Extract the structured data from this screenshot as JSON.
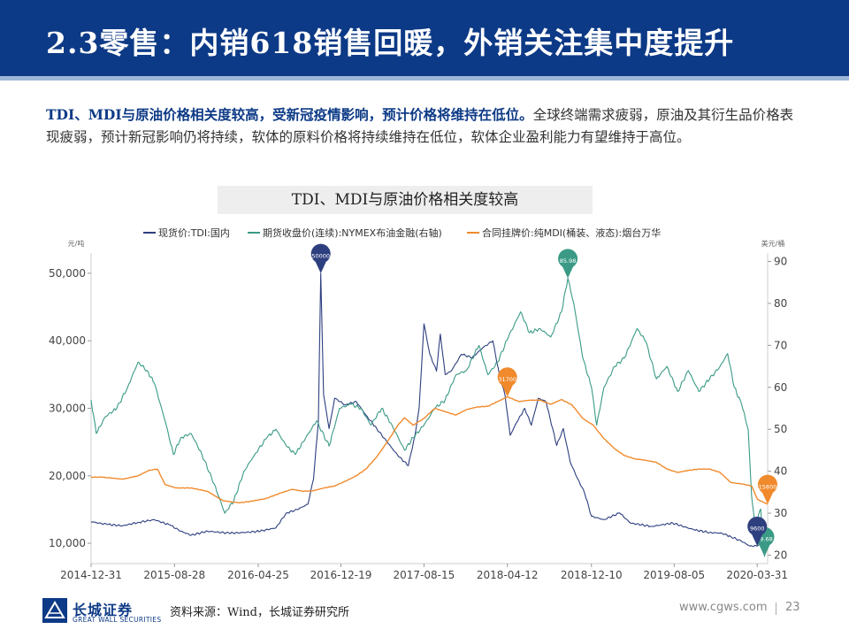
{
  "header": {
    "title": "2.3零售：内销618销售回暖，外销关注集中度提升"
  },
  "intro": {
    "lead": "TDI、MDI与原油价格相关度较高，受新冠疫情影响，预计价格将维持在低位。",
    "body": "全球终端需求疲弱，原油及其衍生品价格表现疲弱，预计新冠影响仍将持续，软体的原料价格将持续维持在低位，软体企业盈利能力有望维持于高位。"
  },
  "footer": {
    "brand": "长城证券",
    "brand_en": "GREAT WALL SECURITIES",
    "source": "资料来源：Wind，长城证券研究所",
    "url": "www.cgws.com",
    "page": "23"
  },
  "colors": {
    "navy": "#2e3f7f",
    "teal": "#3a9a86",
    "orange": "#f08a2c",
    "brand": "#0d3a86"
  },
  "chart_data": {
    "type": "line",
    "title": "TDI、MDI与原油价格相关度较高",
    "left_axis": {
      "unit": "元/吨",
      "range": [
        7000,
        53000
      ],
      "ticks": [
        10000,
        20000,
        30000,
        40000,
        50000
      ],
      "tick_labels": [
        "10,000",
        "20,000",
        "30,000",
        "40,000",
        "50,000"
      ]
    },
    "right_axis": {
      "unit": "美元/桶",
      "range": [
        18,
        92
      ],
      "ticks": [
        20,
        30,
        40,
        50,
        60,
        70,
        80,
        90
      ],
      "tick_labels": [
        "20",
        "30",
        "40",
        "50",
        "60",
        "70",
        "80",
        "90"
      ]
    },
    "x_range": [
      "2014-12-31",
      "2020-04-30"
    ],
    "x_ticks": [
      "2014-12-31",
      "2015-08-28",
      "2016-04-25",
      "2016-12-19",
      "2017-08-15",
      "2018-04-12",
      "2018-12-10",
      "2019-08-05",
      "2020-03-31"
    ],
    "legend": [
      "现货价:TDI:国内",
      "期货收盘价(连续):NYMEX布油金融(右轴)",
      "合同挂牌价:纯MDI(桶装、液态):烟台万华"
    ],
    "series": [
      {
        "name": "现货价:TDI:国内",
        "axis": "left",
        "color": "#2e3f7f",
        "points": [
          [
            "2014-12-31",
            13200
          ],
          [
            "2015-02-15",
            12800
          ],
          [
            "2015-04-01",
            12600
          ],
          [
            "2015-05-15",
            13100
          ],
          [
            "2015-07-01",
            13500
          ],
          [
            "2015-08-15",
            12700
          ],
          [
            "2015-09-15",
            11800
          ],
          [
            "2015-10-15",
            11200
          ],
          [
            "2015-12-01",
            11800
          ],
          [
            "2016-02-01",
            11500
          ],
          [
            "2016-03-15",
            11600
          ],
          [
            "2016-05-01",
            11800
          ],
          [
            "2016-06-15",
            12300
          ],
          [
            "2016-07-15",
            14500
          ],
          [
            "2016-08-15",
            15000
          ],
          [
            "2016-09-15",
            15800
          ],
          [
            "2016-10-01",
            19500
          ],
          [
            "2016-10-15",
            28000
          ],
          [
            "2016-10-22",
            50000
          ],
          [
            "2016-10-30",
            32000
          ],
          [
            "2016-11-15",
            27000
          ],
          [
            "2016-12-01",
            31500
          ],
          [
            "2017-01-01",
            30500
          ],
          [
            "2017-02-01",
            31000
          ],
          [
            "2017-03-01",
            29000
          ],
          [
            "2017-04-01",
            27000
          ],
          [
            "2017-05-01",
            25000
          ],
          [
            "2017-06-01",
            23000
          ],
          [
            "2017-07-01",
            21500
          ],
          [
            "2017-07-20",
            26000
          ],
          [
            "2017-08-01",
            30000
          ],
          [
            "2017-08-15",
            42500
          ],
          [
            "2017-09-01",
            38000
          ],
          [
            "2017-09-20",
            35500
          ],
          [
            "2017-10-01",
            41000
          ],
          [
            "2017-10-15",
            35000
          ],
          [
            "2017-11-01",
            35500
          ],
          [
            "2017-12-01",
            38000
          ],
          [
            "2018-01-01",
            37500
          ],
          [
            "2018-02-01",
            39000
          ],
          [
            "2018-03-01",
            40000
          ],
          [
            "2018-03-20",
            35000
          ],
          [
            "2018-04-05",
            32000
          ],
          [
            "2018-04-20",
            26000
          ],
          [
            "2018-05-10",
            28000
          ],
          [
            "2018-06-01",
            30000
          ],
          [
            "2018-06-20",
            27500
          ],
          [
            "2018-07-10",
            31500
          ],
          [
            "2018-08-01",
            31000
          ],
          [
            "2018-09-01",
            24500
          ],
          [
            "2018-09-20",
            27000
          ],
          [
            "2018-10-10",
            22000
          ],
          [
            "2018-11-01",
            19500
          ],
          [
            "2018-11-20",
            17500
          ],
          [
            "2018-12-10",
            14000
          ],
          [
            "2019-01-15",
            13500
          ],
          [
            "2019-03-01",
            14500
          ],
          [
            "2019-04-01",
            13000
          ],
          [
            "2019-06-01",
            12500
          ],
          [
            "2019-08-01",
            13000
          ],
          [
            "2019-10-01",
            12000
          ],
          [
            "2019-11-15",
            11600
          ],
          [
            "2019-12-20",
            11500
          ],
          [
            "2020-01-15",
            11000
          ],
          [
            "2020-02-15",
            10300
          ],
          [
            "2020-03-10",
            9600
          ],
          [
            "2020-03-31",
            9600
          ],
          [
            "2020-04-30",
            10500
          ]
        ]
      },
      {
        "name": "期货收盘价(连续):NYMEX布油金融(右轴)",
        "axis": "right",
        "color": "#3a9a86",
        "points": [
          [
            "2014-12-31",
            57
          ],
          [
            "2015-01-15",
            49
          ],
          [
            "2015-02-10",
            53
          ],
          [
            "2015-03-15",
            55
          ],
          [
            "2015-04-15",
            60
          ],
          [
            "2015-05-15",
            66
          ],
          [
            "2015-06-10",
            64
          ],
          [
            "2015-07-01",
            61
          ],
          [
            "2015-08-01",
            52
          ],
          [
            "2015-08-25",
            44
          ],
          [
            "2015-09-15",
            48
          ],
          [
            "2015-10-15",
            49
          ],
          [
            "2015-11-15",
            44
          ],
          [
            "2015-12-20",
            37
          ],
          [
            "2016-01-20",
            30
          ],
          [
            "2016-02-15",
            33
          ],
          [
            "2016-03-15",
            40
          ],
          [
            "2016-04-15",
            44
          ],
          [
            "2016-05-20",
            48
          ],
          [
            "2016-06-15",
            50
          ],
          [
            "2016-07-15",
            46
          ],
          [
            "2016-08-10",
            44
          ],
          [
            "2016-09-01",
            47
          ],
          [
            "2016-10-10",
            52
          ],
          [
            "2016-11-15",
            46
          ],
          [
            "2016-12-15",
            55
          ],
          [
            "2017-01-15",
            56
          ],
          [
            "2017-02-15",
            55
          ],
          [
            "2017-03-15",
            51
          ],
          [
            "2017-04-15",
            55
          ],
          [
            "2017-05-15",
            51
          ],
          [
            "2017-06-20",
            45
          ],
          [
            "2017-07-15",
            48
          ],
          [
            "2017-08-15",
            51
          ],
          [
            "2017-09-15",
            55
          ],
          [
            "2017-10-15",
            57
          ],
          [
            "2017-11-15",
            63
          ],
          [
            "2017-12-15",
            64
          ],
          [
            "2018-01-20",
            70
          ],
          [
            "2018-02-15",
            63
          ],
          [
            "2018-03-15",
            66
          ],
          [
            "2018-04-15",
            72
          ],
          [
            "2018-05-20",
            78
          ],
          [
            "2018-06-15",
            73
          ],
          [
            "2018-07-15",
            74
          ],
          [
            "2018-08-15",
            72
          ],
          [
            "2018-09-15",
            78
          ],
          [
            "2018-10-03",
            86
          ],
          [
            "2018-10-20",
            80
          ],
          [
            "2018-11-15",
            67
          ],
          [
            "2018-12-10",
            60
          ],
          [
            "2018-12-25",
            51
          ],
          [
            "2019-01-15",
            60
          ],
          [
            "2019-02-15",
            65
          ],
          [
            "2019-03-15",
            67
          ],
          [
            "2019-04-20",
            74
          ],
          [
            "2019-05-15",
            71
          ],
          [
            "2019-06-15",
            62
          ],
          [
            "2019-07-15",
            65
          ],
          [
            "2019-08-15",
            59
          ],
          [
            "2019-09-15",
            64
          ],
          [
            "2019-10-15",
            59
          ],
          [
            "2019-11-15",
            62
          ],
          [
            "2019-12-15",
            65
          ],
          [
            "2020-01-06",
            68
          ],
          [
            "2020-01-25",
            60
          ],
          [
            "2020-02-15",
            56
          ],
          [
            "2020-03-05",
            50
          ],
          [
            "2020-03-15",
            34
          ],
          [
            "2020-03-25",
            27
          ],
          [
            "2020-04-10",
            31
          ],
          [
            "2020-04-21",
            19.68
          ],
          [
            "2020-04-30",
            26
          ]
        ]
      },
      {
        "name": "合同挂牌价:纯MDI(桶装、液态):烟台万华",
        "axis": "left",
        "color": "#f08a2c",
        "points": [
          [
            "2014-12-31",
            19800
          ],
          [
            "2015-02-01",
            19800
          ],
          [
            "2015-04-01",
            19500
          ],
          [
            "2015-05-15",
            20000
          ],
          [
            "2015-06-15",
            20800
          ],
          [
            "2015-07-10",
            21000
          ],
          [
            "2015-08-01",
            18700
          ],
          [
            "2015-09-01",
            18200
          ],
          [
            "2015-10-15",
            18200
          ],
          [
            "2015-12-01",
            17700
          ],
          [
            "2016-01-15",
            16300
          ],
          [
            "2016-03-01",
            16000
          ],
          [
            "2016-04-01",
            16200
          ],
          [
            "2016-05-15",
            16600
          ],
          [
            "2016-07-01",
            17500
          ],
          [
            "2016-08-01",
            18000
          ],
          [
            "2016-09-01",
            17700
          ],
          [
            "2016-10-01",
            17800
          ],
          [
            "2016-11-01",
            18200
          ],
          [
            "2016-12-01",
            18500
          ],
          [
            "2017-01-01",
            19200
          ],
          [
            "2017-02-01",
            20000
          ],
          [
            "2017-03-01",
            21000
          ],
          [
            "2017-04-01",
            22800
          ],
          [
            "2017-05-01",
            25000
          ],
          [
            "2017-06-01",
            27500
          ],
          [
            "2017-06-20",
            28600
          ],
          [
            "2017-07-15",
            27500
          ],
          [
            "2017-08-15",
            28500
          ],
          [
            "2017-09-15",
            30000
          ],
          [
            "2017-10-15",
            29500
          ],
          [
            "2017-11-15",
            29000
          ],
          [
            "2017-12-15",
            29800
          ],
          [
            "2018-01-15",
            30200
          ],
          [
            "2018-02-15",
            30300
          ],
          [
            "2018-03-15",
            31000
          ],
          [
            "2018-04-12",
            31700
          ],
          [
            "2018-05-15",
            31000
          ],
          [
            "2018-06-15",
            31200
          ],
          [
            "2018-07-15",
            31200
          ],
          [
            "2018-08-15",
            30600
          ],
          [
            "2018-09-15",
            31300
          ],
          [
            "2018-10-15",
            30500
          ],
          [
            "2018-11-15",
            28500
          ],
          [
            "2018-12-15",
            27500
          ],
          [
            "2019-01-15",
            25500
          ],
          [
            "2019-02-15",
            24000
          ],
          [
            "2019-03-15",
            23000
          ],
          [
            "2019-04-15",
            22500
          ],
          [
            "2019-05-15",
            22300
          ],
          [
            "2019-06-15",
            22000
          ],
          [
            "2019-07-15",
            21000
          ],
          [
            "2019-08-15",
            20500
          ],
          [
            "2019-09-15",
            20800
          ],
          [
            "2019-10-15",
            21000
          ],
          [
            "2019-11-15",
            21000
          ],
          [
            "2019-12-15",
            20500
          ],
          [
            "2020-01-15",
            19000
          ],
          [
            "2020-02-15",
            18800
          ],
          [
            "2020-03-15",
            18500
          ],
          [
            "2020-04-01",
            16500
          ],
          [
            "2020-04-30",
            15800
          ]
        ]
      }
    ],
    "annotations": [
      {
        "series": 0,
        "date": "2016-10-22",
        "value": 50000,
        "label": "50000",
        "color": "#2e3f7f"
      },
      {
        "series": 1,
        "date": "2018-10-03",
        "value": 85.98,
        "label": "85.98",
        "color": "#3a9a86"
      },
      {
        "series": 2,
        "date": "2018-04-12",
        "value": 31700,
        "label": "31700",
        "color": "#f08a2c"
      },
      {
        "series": 2,
        "date": "2020-04-30",
        "value": 15800,
        "label": "15800",
        "color": "#f08a2c"
      },
      {
        "series": 1,
        "date": "2020-04-21",
        "value": 19.68,
        "label": "19.68",
        "color": "#3a9a86"
      },
      {
        "series": 0,
        "date": "2020-03-31",
        "value": 9600,
        "label": "9600",
        "color": "#2e3f7f"
      }
    ]
  }
}
